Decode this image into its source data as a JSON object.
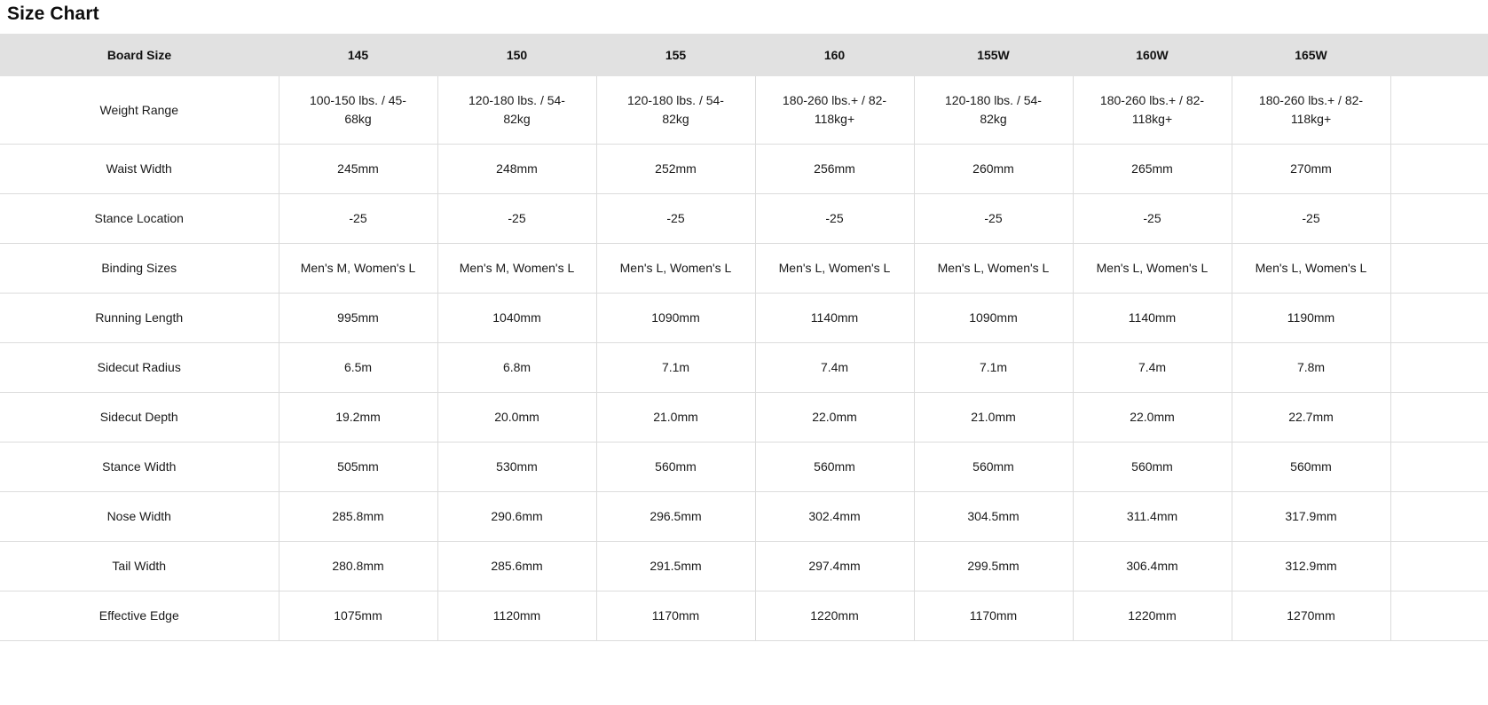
{
  "page": {
    "title": "Size Chart"
  },
  "table": {
    "columns": [
      "Board Size",
      "145",
      "150",
      "155",
      "160",
      "155W",
      "160W",
      "165W"
    ],
    "rows": [
      {
        "label": "Weight Range",
        "values": [
          "100-150 lbs. / 45-68kg",
          "120-180 lbs. / 54-82kg",
          "120-180 lbs. / 54-82kg",
          "180-260 lbs.+ / 82-118kg+",
          "120-180 lbs. / 54-82kg",
          "180-260 lbs.+ / 82-118kg+",
          "180-260 lbs.+ / 82-118kg+"
        ]
      },
      {
        "label": "Waist Width",
        "values": [
          "245mm",
          "248mm",
          "252mm",
          "256mm",
          "260mm",
          "265mm",
          "270mm"
        ]
      },
      {
        "label": "Stance Location",
        "values": [
          "-25",
          "-25",
          "-25",
          "-25",
          "-25",
          "-25",
          "-25"
        ]
      },
      {
        "label": "Binding Sizes",
        "values": [
          "Men's M, Women's L",
          "Men's M, Women's L",
          "Men's L, Women's L",
          "Men's L, Women's L",
          "Men's L, Women's L",
          "Men's L, Women's L",
          "Men's L, Women's L"
        ]
      },
      {
        "label": "Running Length",
        "values": [
          "995mm",
          "1040mm",
          "1090mm",
          "1140mm",
          "1090mm",
          "1140mm",
          "1190mm"
        ]
      },
      {
        "label": "Sidecut Radius",
        "values": [
          "6.5m",
          "6.8m",
          "7.1m",
          "7.4m",
          "7.1m",
          "7.4m",
          "7.8m"
        ]
      },
      {
        "label": "Sidecut Depth",
        "values": [
          "19.2mm",
          "20.0mm",
          "21.0mm",
          "22.0mm",
          "21.0mm",
          "22.0mm",
          "22.7mm"
        ]
      },
      {
        "label": "Stance Width",
        "values": [
          "505mm",
          "530mm",
          "560mm",
          "560mm",
          "560mm",
          "560mm",
          "560mm"
        ]
      },
      {
        "label": "Nose Width",
        "values": [
          "285.8mm",
          "290.6mm",
          "296.5mm",
          "302.4mm",
          "304.5mm",
          "311.4mm",
          "317.9mm"
        ]
      },
      {
        "label": "Tail Width",
        "values": [
          "280.8mm",
          "285.6mm",
          "291.5mm",
          "297.4mm",
          "299.5mm",
          "306.4mm",
          "312.9mm"
        ]
      },
      {
        "label": "Effective Edge",
        "values": [
          "1075mm",
          "1120mm",
          "1170mm",
          "1220mm",
          "1170mm",
          "1220mm",
          "1270mm"
        ]
      }
    ]
  },
  "colors": {
    "header_bg": "#e1e1e1",
    "border": "#dcdcdc",
    "text": "#1a1a1a"
  }
}
